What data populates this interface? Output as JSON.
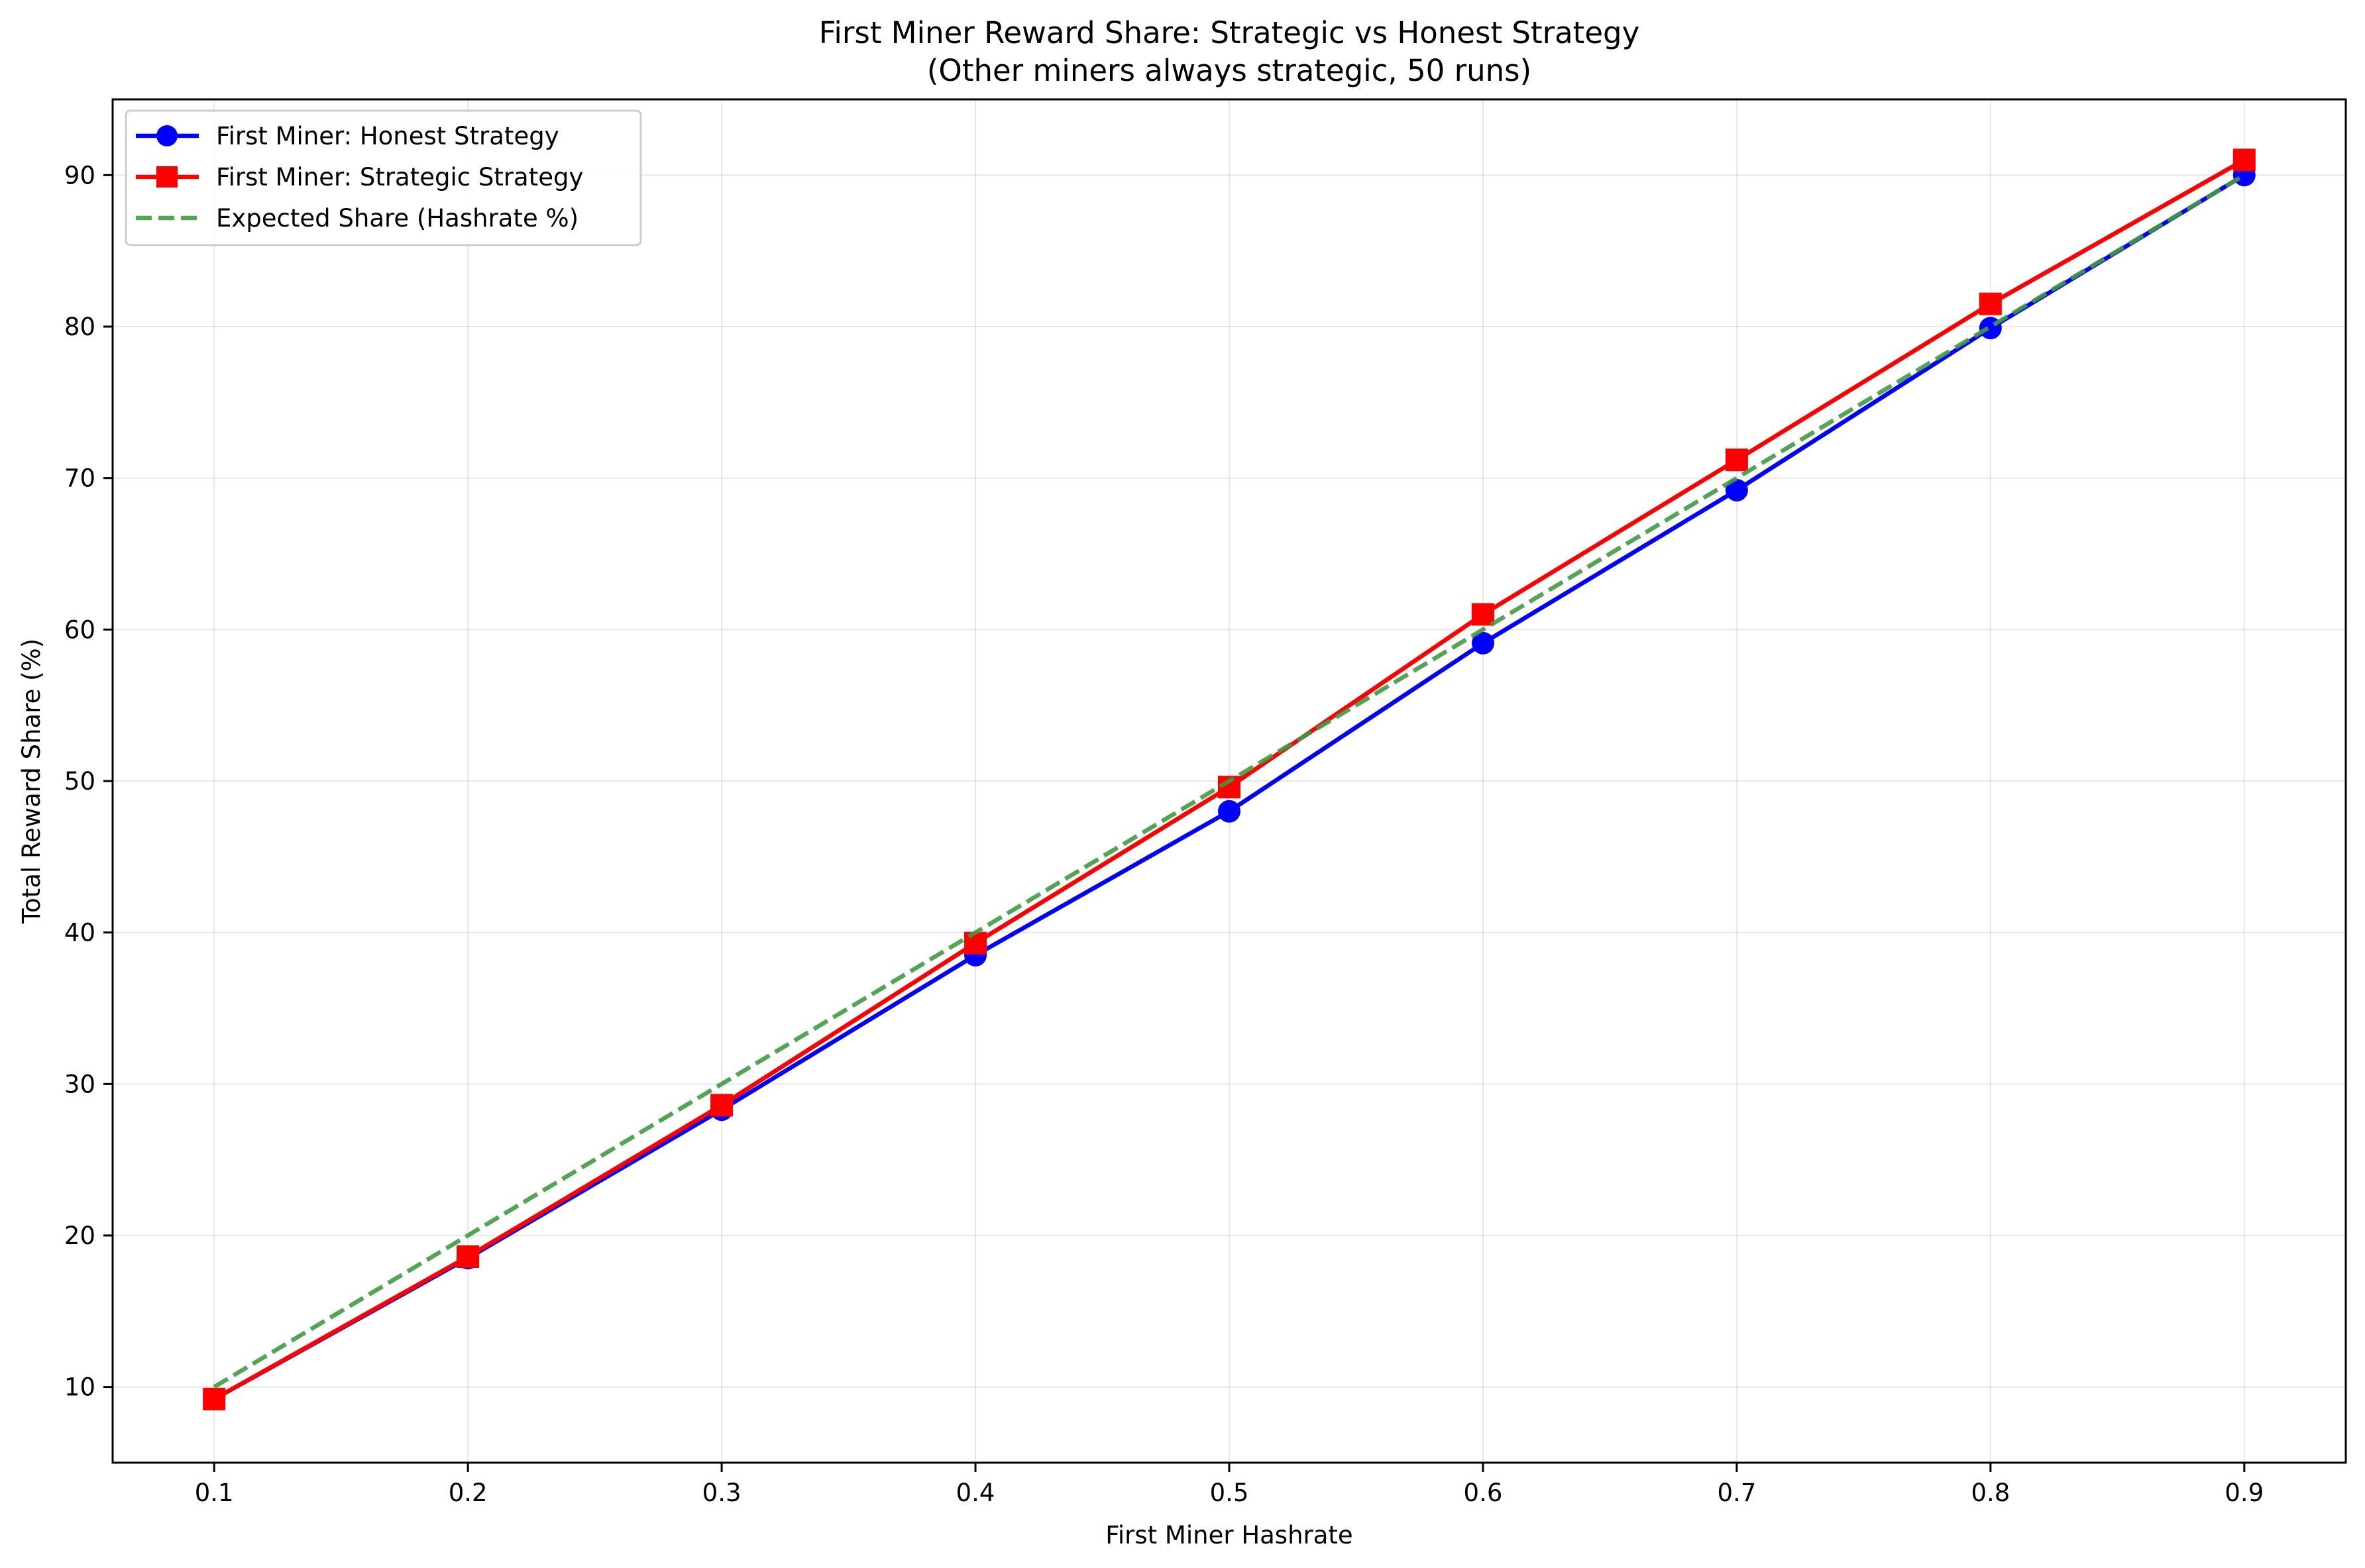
{
  "chart_data": {
    "type": "line",
    "title": "First Miner Reward Share: Strategic vs Honest Strategy",
    "subtitle": "(Other miners always strategic, 50 runs)",
    "xlabel": "First Miner Hashrate",
    "ylabel": "Total Reward Share (%)",
    "x": [
      0.1,
      0.2,
      0.3,
      0.4,
      0.5,
      0.6,
      0.7,
      0.8,
      0.9
    ],
    "xlim": [
      0.06,
      0.94
    ],
    "ylim": [
      5,
      95
    ],
    "x_ticks": [
      "0.1",
      "0.2",
      "0.3",
      "0.4",
      "0.5",
      "0.6",
      "0.7",
      "0.8",
      "0.9"
    ],
    "y_ticks": [
      "10",
      "20",
      "30",
      "40",
      "50",
      "60",
      "70",
      "80",
      "90"
    ],
    "grid": true,
    "legend_position": "top-left",
    "series": [
      {
        "name": "First Miner: Honest Strategy",
        "color": "#0000ff",
        "marker": "circle",
        "line_style": "solid",
        "values": [
          9.2,
          18.5,
          28.3,
          38.5,
          48.0,
          59.1,
          69.2,
          79.9,
          90.0
        ]
      },
      {
        "name": "First Miner: Strategic Strategy",
        "color": "#ff0000",
        "marker": "square",
        "line_style": "solid",
        "values": [
          9.2,
          18.6,
          28.6,
          39.3,
          49.6,
          61.0,
          71.2,
          81.5,
          91.0
        ]
      },
      {
        "name": "Expected Share (Hashrate %)",
        "color": "#3f9b3f",
        "marker": "none",
        "line_style": "dashed",
        "values": [
          10,
          20,
          30,
          40,
          50,
          60,
          70,
          80,
          90
        ]
      }
    ]
  }
}
